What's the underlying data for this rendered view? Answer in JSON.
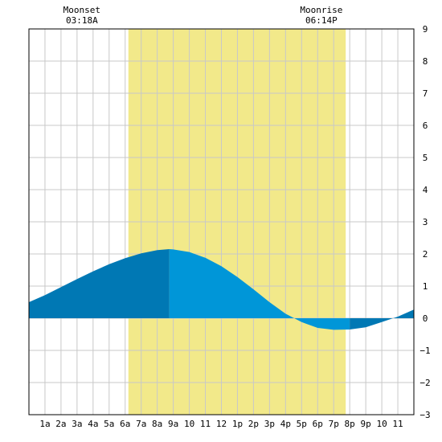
{
  "chart_data": {
    "type": "area",
    "x_unit": "hour of day",
    "xlim": [
      0,
      24
    ],
    "ylim": [
      -3,
      9
    ],
    "y_ticks": [
      -3,
      -2,
      -1,
      0,
      1,
      2,
      3,
      4,
      5,
      6,
      7,
      8,
      9
    ],
    "y_tick_labels": [
      "−3",
      "−2",
      "−1",
      "0",
      "1",
      "2",
      "3",
      "4",
      "5",
      "6",
      "7",
      "8",
      "9"
    ],
    "x_ticks": [
      1,
      2,
      3,
      4,
      5,
      6,
      7,
      8,
      9,
      10,
      11,
      12,
      13,
      14,
      15,
      16,
      17,
      18,
      19,
      20,
      21,
      22,
      23
    ],
    "x_tick_labels": [
      "1a",
      "2a",
      "3a",
      "4a",
      "5a",
      "6a",
      "7a",
      "8a",
      "9a",
      "10",
      "11",
      "12",
      "1p",
      "2p",
      "3p",
      "4p",
      "5p",
      "6p",
      "7p",
      "8p",
      "9p",
      "10",
      "11"
    ],
    "grid": true,
    "daylight": {
      "start": 6.2,
      "end": 19.75,
      "color": "#f2e98a"
    },
    "tide_peak": {
      "x": 8.75,
      "y": 2.15
    },
    "tide_trough": {
      "x": 20.0,
      "y": -0.35
    },
    "series": [
      {
        "x": [
          0,
          1,
          2,
          3,
          4,
          5,
          6,
          7,
          8,
          8.75,
          9,
          10,
          11,
          12,
          13,
          14,
          15,
          16,
          17,
          18,
          19,
          20,
          21,
          22,
          23,
          24
        ],
        "y": [
          0.5,
          0.72,
          0.97,
          1.22,
          1.46,
          1.68,
          1.87,
          2.02,
          2.12,
          2.15,
          2.14,
          2.06,
          1.88,
          1.62,
          1.28,
          0.9,
          0.5,
          0.14,
          -0.12,
          -0.3,
          -0.36,
          -0.35,
          -0.28,
          -0.12,
          0.05,
          0.27
        ]
      }
    ],
    "moon_events": [
      {
        "label": "Moonset",
        "time": "03:18A",
        "x": 3.3
      },
      {
        "label": "Moonrise",
        "time": "06:14P",
        "x": 18.23
      }
    ],
    "colors": {
      "rising": "#0078b4",
      "falling": "#0096d8",
      "grid": "#c8c8c8",
      "axis": "#000000"
    }
  }
}
